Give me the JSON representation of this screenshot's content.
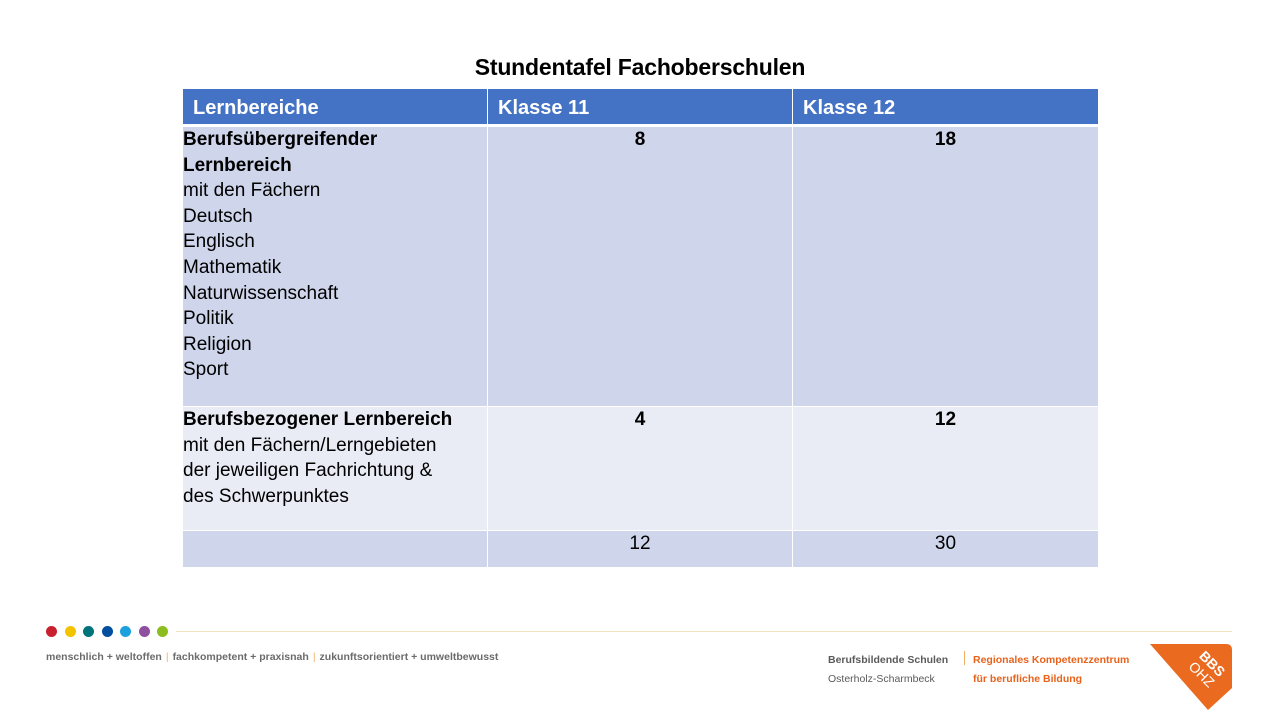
{
  "title": "Stundentafel Fachoberschulen",
  "table": {
    "headers": [
      "Lernbereiche",
      "Klasse 11",
      "Klasse 12"
    ],
    "rows": [
      {
        "heading": [
          "Berufsübergreifender",
          "Lernbereich"
        ],
        "lines": [
          "mit den Fächern",
          "Deutsch",
          "Englisch",
          "Mathematik",
          "Naturwissenschaft",
          "Politik",
          "Religion",
          "Sport"
        ],
        "klasse11": "8",
        "klasse12": "18"
      },
      {
        "heading": [
          "Berufsbezogener Lernbereich"
        ],
        "lines": [
          "mit den Fächern/Lerngebieten",
          "der jeweiligen Fachrichtung &",
          "des Schwerpunktes"
        ],
        "klasse11": "4",
        "klasse12": "12"
      }
    ],
    "totals": {
      "label": "",
      "klasse11": "12",
      "klasse12": "30"
    }
  },
  "footer": {
    "dot_colors": [
      "#c8202f",
      "#f3c300",
      "#00737a",
      "#004f9f",
      "#1aa0dc",
      "#8e4fa0",
      "#8cbd1e"
    ],
    "slogan": [
      "menschlich + weltoffen",
      "fachkompetent + praxisnah",
      "zukunftsorientiert + umweltbewusst"
    ],
    "slogan_separator": "|",
    "school_name": "Berufsbildende Schulen",
    "school_location": "Osterholz-Scharmbeck",
    "center_line1": "Regionales Kompetenzzentrum",
    "center_line2": "für berufliche Bildung",
    "logo_text_top": "BBS",
    "logo_text_bottom": "OHZ",
    "logo_color": "#ea6a1f"
  }
}
